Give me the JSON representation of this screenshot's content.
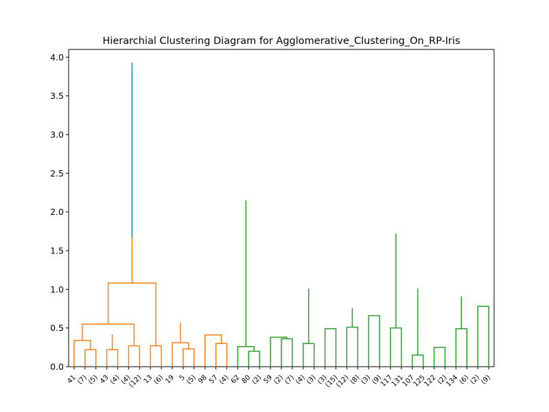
{
  "chart_data": {
    "type": "dendrogram",
    "title": "Hierarchial Clustering Diagram for Agglomerative_Clustering_On_RP-Iris",
    "xlabel": "",
    "ylabel": "",
    "ylim": [
      0,
      4.1
    ],
    "yticks": [
      "0.0",
      "0.5",
      "1.0",
      "1.5",
      "2.0",
      "2.5",
      "3.0",
      "3.5",
      "4.0"
    ],
    "grid": false,
    "colors": {
      "root": "#1f77b4",
      "cluster_1": "#ff7f0e",
      "cluster_2": "#2ca02c"
    },
    "leaf_labels": [
      "41",
      "(7)",
      "(5)",
      "43",
      "(4)",
      "(4)",
      "(12)",
      "13",
      "(6)",
      "19",
      "5",
      "(5)",
      "98",
      "57",
      "(4)",
      "62",
      "80",
      "(2)",
      "59",
      "(2)",
      "(7)",
      "(4)",
      "(3)",
      "(3)",
      "(15)",
      "(12)",
      "(8)",
      "(3)",
      "(9)",
      "117",
      "131",
      "107",
      "125",
      "122",
      "(2)",
      "134",
      "(6)",
      "(2)",
      "(9)"
    ],
    "links": [
      {
        "a": 1,
        "b": 2,
        "h": 0.22,
        "c": "cluster_1"
      },
      {
        "a": 3,
        "b": 4,
        "h": 0.22,
        "c": "cluster_1"
      },
      {
        "a": 0,
        "b": 1,
        "h": 0.34,
        "c": "cluster_1"
      },
      {
        "a": 5,
        "b": 6,
        "h": 0.27,
        "c": "cluster_1"
      },
      {
        "a": 7,
        "b": 8,
        "h": 0.27,
        "c": "cluster_1"
      },
      {
        "a": 3,
        "b": 4,
        "h": 0.42,
        "c": "cluster_1"
      },
      {
        "a": 2,
        "b": 5,
        "h": 0.55,
        "c": "cluster_1"
      },
      {
        "a": 10,
        "b": 11,
        "h": 0.23,
        "c": "cluster_1"
      },
      {
        "a": 9,
        "b": 10,
        "h": 0.31,
        "c": "cluster_1"
      },
      {
        "a": 13,
        "b": 14,
        "h": 0.3,
        "c": "cluster_1"
      },
      {
        "a": 12,
        "b": 13,
        "h": 0.41,
        "c": "cluster_1"
      },
      {
        "a": 9,
        "b": 10,
        "h": 0.57,
        "c": "cluster_1"
      },
      {
        "a": 6,
        "b": 7,
        "h": 1.08,
        "c": "cluster_1"
      },
      {
        "a": 0,
        "b": 1,
        "h": 1.67,
        "c": "cluster_1"
      },
      {
        "a": 16,
        "b": 17,
        "h": 0.2,
        "c": "cluster_2"
      },
      {
        "a": 15,
        "b": 16,
        "h": 0.26,
        "c": "cluster_2"
      },
      {
        "a": 19,
        "b": 20,
        "h": 0.36,
        "c": "cluster_2"
      },
      {
        "a": 18,
        "b": 19,
        "h": 0.38,
        "c": "cluster_2"
      },
      {
        "a": 15,
        "b": 16,
        "h": 0.59,
        "c": "cluster_2"
      },
      {
        "a": 21,
        "b": 22,
        "h": 0.3,
        "c": "cluster_2"
      },
      {
        "a": 23,
        "b": 24,
        "h": 0.49,
        "c": "cluster_2"
      },
      {
        "a": 21,
        "b": 22,
        "h": 0.57,
        "c": "cluster_2"
      },
      {
        "a": 25,
        "b": 26,
        "h": 0.51,
        "c": "cluster_2"
      },
      {
        "a": 27,
        "b": 28,
        "h": 0.66,
        "c": "cluster_2"
      },
      {
        "a": 25,
        "b": 26,
        "h": 0.76,
        "c": "cluster_2"
      },
      {
        "a": 21,
        "b": 22,
        "h": 1.01,
        "c": "cluster_2"
      },
      {
        "a": 15,
        "b": 16,
        "h": 1.61,
        "c": "cluster_2"
      },
      {
        "a": 29,
        "b": 30,
        "h": 0.5,
        "c": "cluster_2"
      },
      {
        "a": 31,
        "b": 32,
        "h": 0.15,
        "c": "cluster_2"
      },
      {
        "a": 33,
        "b": 34,
        "h": 0.25,
        "c": "cluster_2"
      },
      {
        "a": 31,
        "b": 32,
        "h": 0.42,
        "c": "cluster_2"
      },
      {
        "a": 35,
        "b": 36,
        "h": 0.49,
        "c": "cluster_2"
      },
      {
        "a": 37,
        "b": 38,
        "h": 0.78,
        "c": "cluster_2"
      },
      {
        "a": 35,
        "b": 36,
        "h": 0.91,
        "c": "cluster_2"
      },
      {
        "a": 31,
        "b": 32,
        "h": 1.01,
        "c": "cluster_2"
      },
      {
        "a": 29,
        "b": 30,
        "h": 1.72,
        "c": "cluster_2"
      },
      {
        "a": 15,
        "b": 16,
        "h": 2.15,
        "c": "cluster_2"
      },
      {
        "a": 0,
        "b": 1,
        "h": 3.93,
        "c": "root"
      }
    ]
  }
}
